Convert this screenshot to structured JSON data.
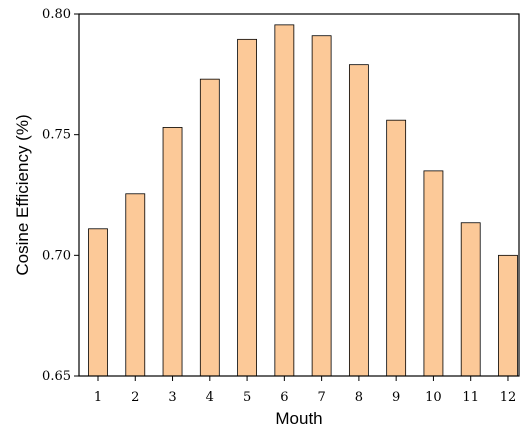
{
  "chart_data": {
    "type": "bar",
    "categories": [
      "1",
      "2",
      "3",
      "4",
      "5",
      "6",
      "7",
      "8",
      "9",
      "10",
      "11",
      "12"
    ],
    "values": [
      0.711,
      0.7255,
      0.753,
      0.773,
      0.7895,
      0.7955,
      0.791,
      0.779,
      0.756,
      0.735,
      0.7135,
      0.7
    ],
    "title": "",
    "xlabel": "Mouth",
    "ylabel": "Cosine Efficiency (%)",
    "ylim": [
      0.65,
      0.8
    ],
    "yticks": [
      "0.65",
      "0.70",
      "0.75",
      "0.80"
    ],
    "grid": false,
    "bar_color": "#fcc998",
    "bar_edge_color": "#000000"
  }
}
